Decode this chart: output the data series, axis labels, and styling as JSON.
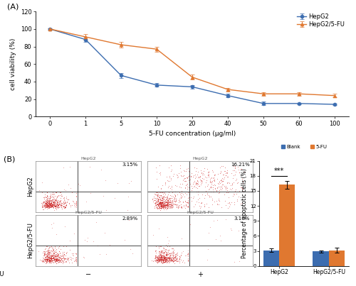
{
  "panel_A_label": "(A)",
  "panel_B_label": "(B)",
  "line_x": [
    0,
    1,
    5,
    10,
    20,
    40,
    50,
    60,
    100
  ],
  "line_x_positions": [
    0,
    1,
    2,
    3,
    4,
    5,
    6,
    7,
    8
  ],
  "hepg2_y": [
    100,
    88,
    47,
    36,
    34,
    24,
    15,
    15,
    14
  ],
  "hepg2_err": [
    1,
    3,
    3,
    2,
    2,
    2,
    2,
    1,
    1
  ],
  "hepg2fu_y": [
    100,
    91,
    82,
    77,
    45,
    31,
    26,
    26,
    24
  ],
  "hepg2fu_err": [
    1,
    3,
    3,
    3,
    3,
    2,
    2,
    2,
    2
  ],
  "hepg2_color": "#3c6db0",
  "hepg2fu_color": "#e07830",
  "line_xlabel": "5-FU concentration (μg/ml)",
  "line_ylabel": "cell viability (%)",
  "line_ylim": [
    0,
    120
  ],
  "line_yticks": [
    0,
    20,
    40,
    60,
    80,
    100,
    120
  ],
  "line_xtick_labels": [
    "0",
    "1",
    "5",
    "10",
    "20",
    "40",
    "50",
    "60",
    "100"
  ],
  "legend_labels": [
    "HepG2",
    "HepG2/5-FU"
  ],
  "bar_groups": [
    "HepG2",
    "HepG2/5-FU"
  ],
  "bar_blank_vals": [
    3.15,
    2.89
  ],
  "bar_blank_errs": [
    0.3,
    0.2
  ],
  "bar_5fu_vals": [
    16.21,
    3.1
  ],
  "bar_5fu_errs": [
    0.8,
    0.5
  ],
  "bar_blank_color": "#3c6db0",
  "bar_5fu_color": "#e07830",
  "bar_ylabel": "Percentage of apoptotic cells (%)",
  "bar_ylim": [
    0,
    21
  ],
  "bar_yticks": [
    0,
    3,
    6,
    9,
    12,
    15,
    18,
    21
  ],
  "bar_legend_labels": [
    "Blank",
    "5-FU"
  ],
  "significance_text": "***",
  "flow_percentages": [
    "3.15%",
    "16.21%",
    "2.89%",
    "3.10%"
  ],
  "flow_titles": [
    "HepG2",
    "HepG2",
    "HepG2/5-FU",
    "HepG2/5-FU"
  ],
  "flow_row_labels": [
    "HepG2",
    "HepG2/5-FU"
  ],
  "fu_labels": [
    "−",
    "+"
  ],
  "bg_color": "#ffffff"
}
